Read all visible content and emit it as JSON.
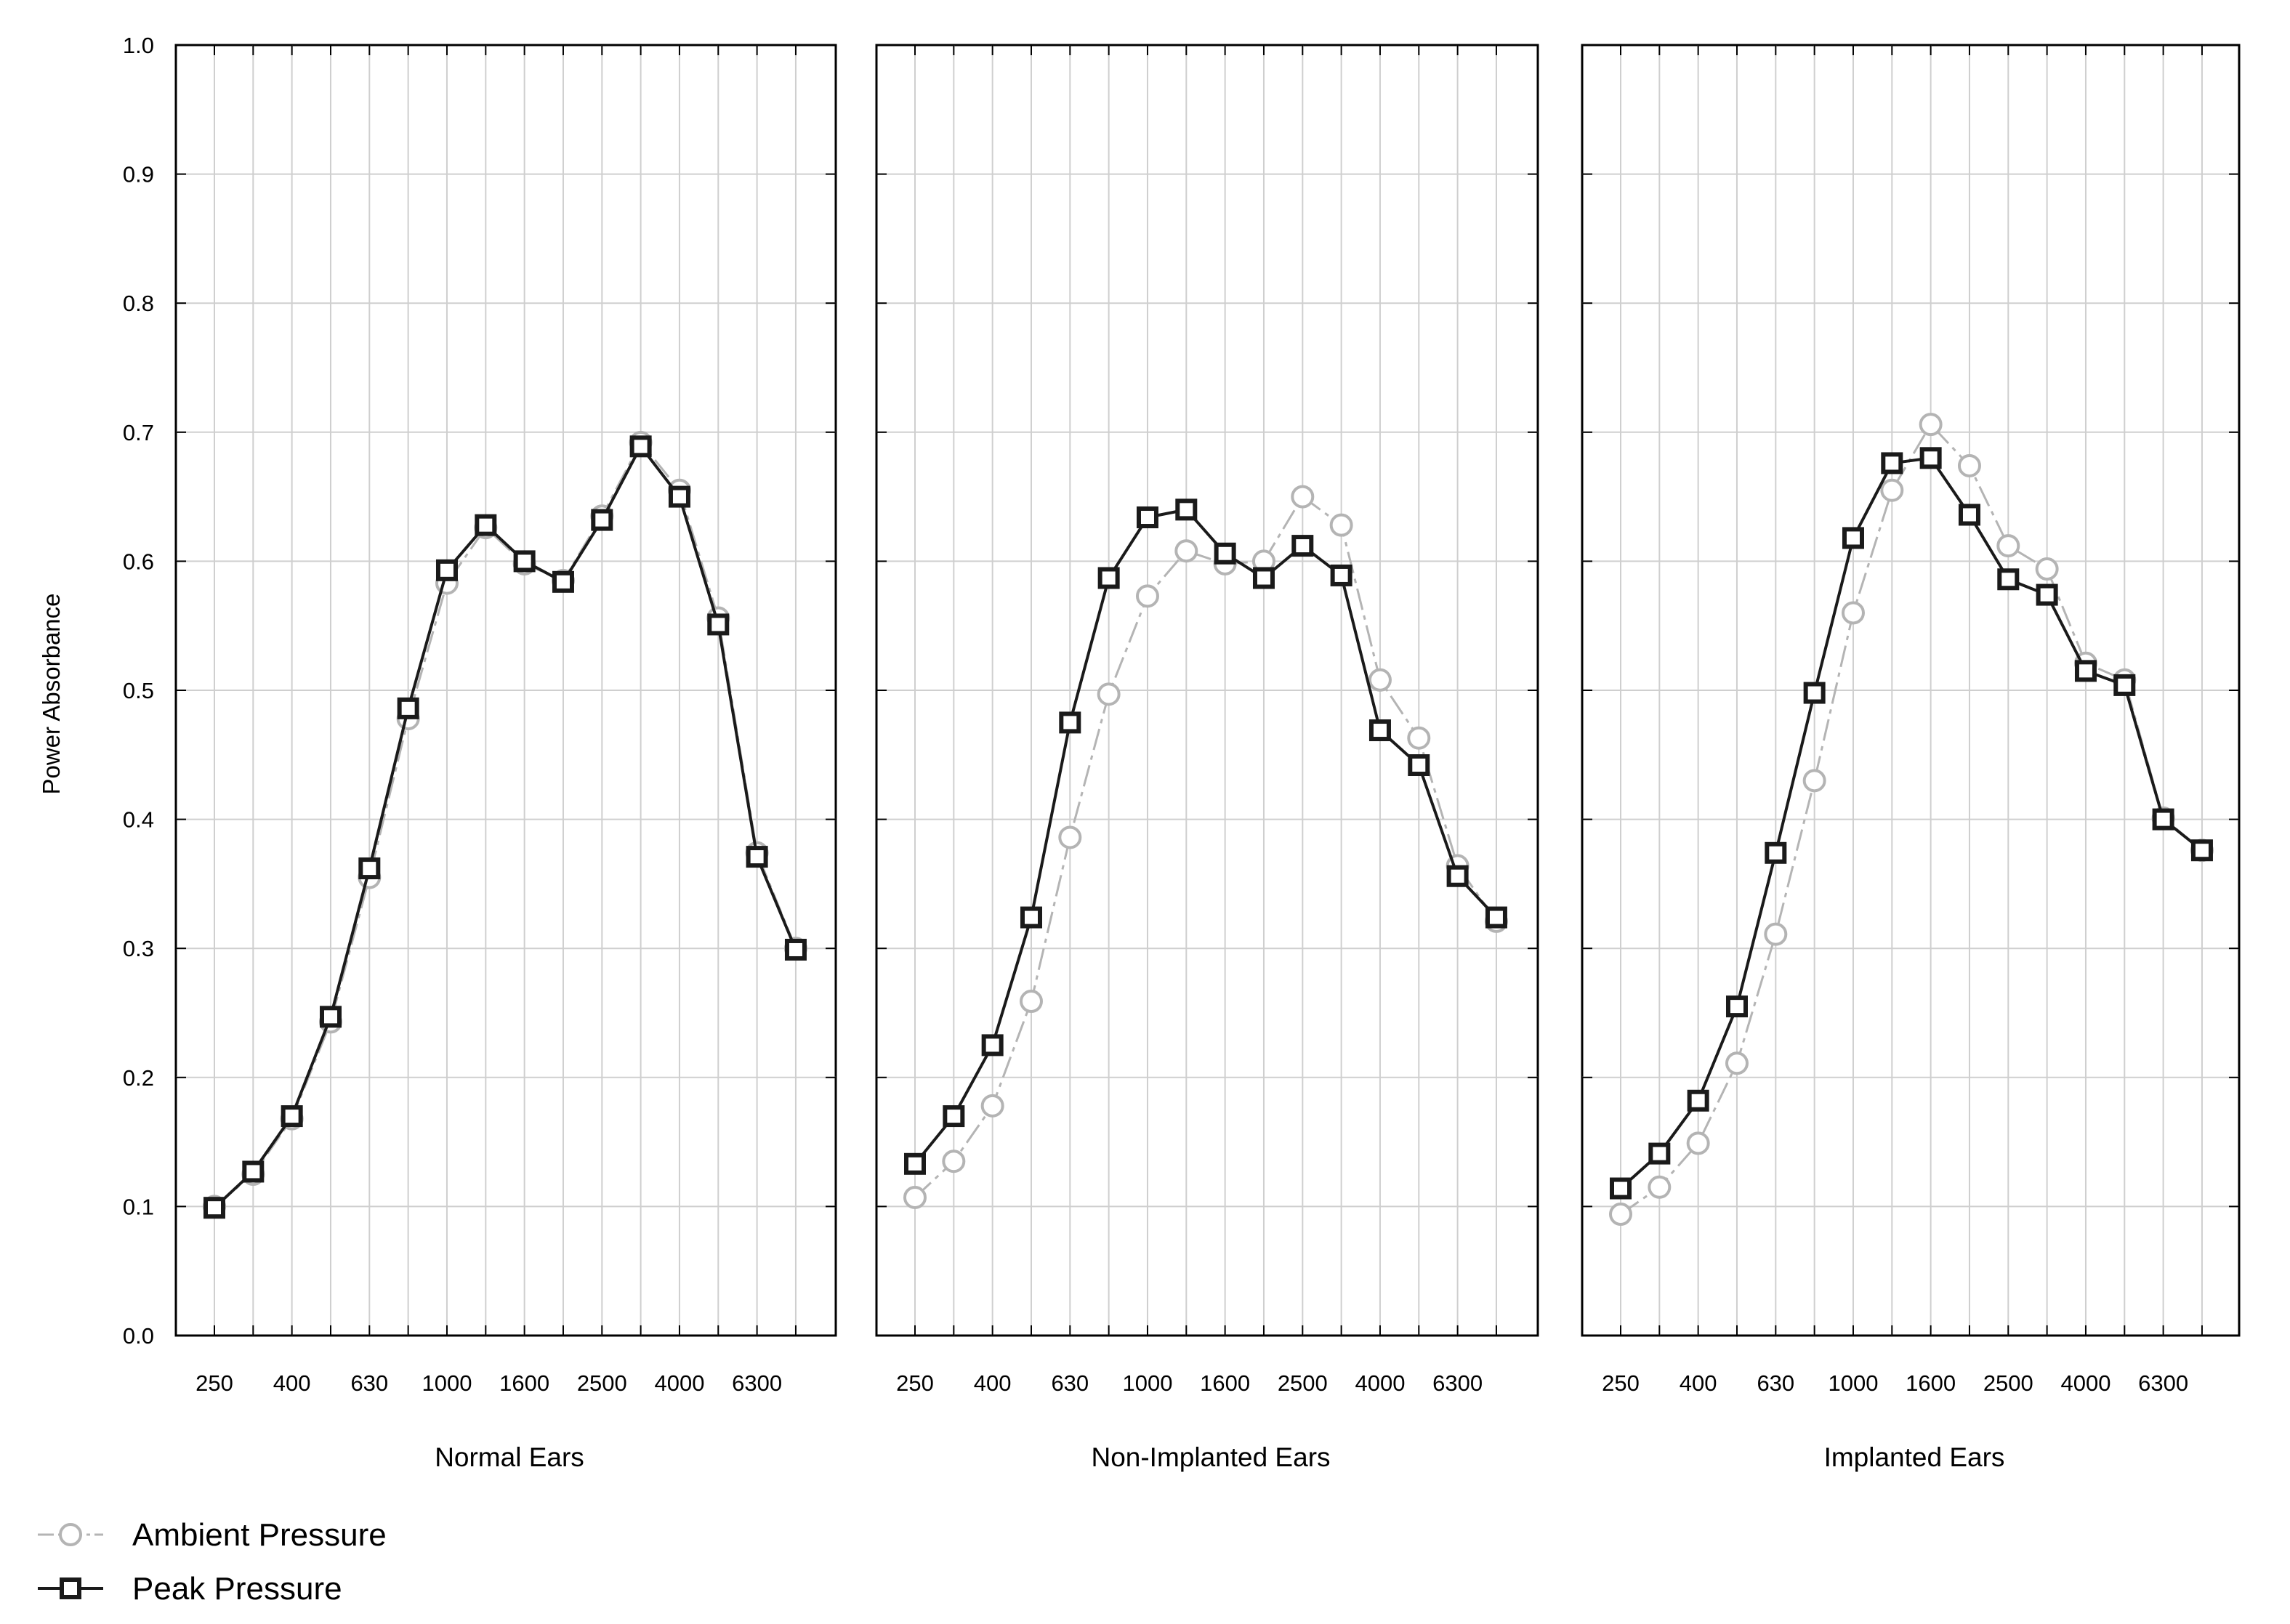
{
  "chart_data": {
    "type": "line",
    "ylabel": "Power Absorbance",
    "ylim": [
      0.0,
      1.0
    ],
    "yticks": [
      "0.0",
      "0.1",
      "0.2",
      "0.3",
      "0.4",
      "0.5",
      "0.6",
      "0.7",
      "0.8",
      "0.9",
      "1.0"
    ],
    "grid": true,
    "legend_placement": "bottom-left",
    "x": [
      250,
      315,
      400,
      500,
      630,
      800,
      1000,
      1250,
      1600,
      2000,
      2500,
      3150,
      4000,
      5000,
      6300,
      8000
    ],
    "xtick_labels": [
      "250",
      "400",
      "630",
      "1000",
      "1600",
      "2500",
      "4000",
      "6300"
    ],
    "legend": [
      {
        "name": "Ambient Pressure",
        "color": "#b4b4b4",
        "marker": "circle"
      },
      {
        "name": "Peak Pressure",
        "color": "#1a1a1a",
        "marker": "square"
      }
    ],
    "panels": [
      {
        "xlabel": "Normal Ears",
        "series": [
          {
            "name": "Ambient Pressure",
            "values": [
              0.1,
              0.125,
              0.168,
              0.243,
              0.355,
              0.478,
              0.583,
              0.626,
              0.598,
              0.585,
              0.635,
              0.692,
              0.655,
              0.556,
              0.374,
              0.3
            ]
          },
          {
            "name": "Peak Pressure",
            "values": [
              0.099,
              0.127,
              0.17,
              0.247,
              0.362,
              0.486,
              0.593,
              0.628,
              0.6,
              0.584,
              0.632,
              0.689,
              0.65,
              0.551,
              0.371,
              0.299
            ]
          }
        ]
      },
      {
        "xlabel": "Non-Implanted Ears",
        "series": [
          {
            "name": "Ambient Pressure",
            "values": [
              0.107,
              0.135,
              0.178,
              0.259,
              0.386,
              0.497,
              0.573,
              0.608,
              0.598,
              0.6,
              0.65,
              0.628,
              0.508,
              0.463,
              0.364,
              0.321
            ]
          },
          {
            "name": "Peak Pressure",
            "values": [
              0.133,
              0.17,
              0.225,
              0.324,
              0.475,
              0.587,
              0.634,
              0.64,
              0.606,
              0.587,
              0.612,
              0.589,
              0.469,
              0.442,
              0.356,
              0.324
            ]
          }
        ]
      },
      {
        "xlabel": "Implanted Ears",
        "series": [
          {
            "name": "Ambient Pressure",
            "values": [
              0.094,
              0.115,
              0.149,
              0.211,
              0.311,
              0.43,
              0.56,
              0.655,
              0.706,
              0.674,
              0.612,
              0.594,
              0.521,
              0.508,
              0.401,
              0.376
            ]
          },
          {
            "name": "Peak Pressure",
            "values": [
              0.114,
              0.141,
              0.182,
              0.255,
              0.374,
              0.498,
              0.618,
              0.676,
              0.68,
              0.636,
              0.586,
              0.574,
              0.515,
              0.504,
              0.4,
              0.376
            ]
          }
        ]
      }
    ]
  }
}
